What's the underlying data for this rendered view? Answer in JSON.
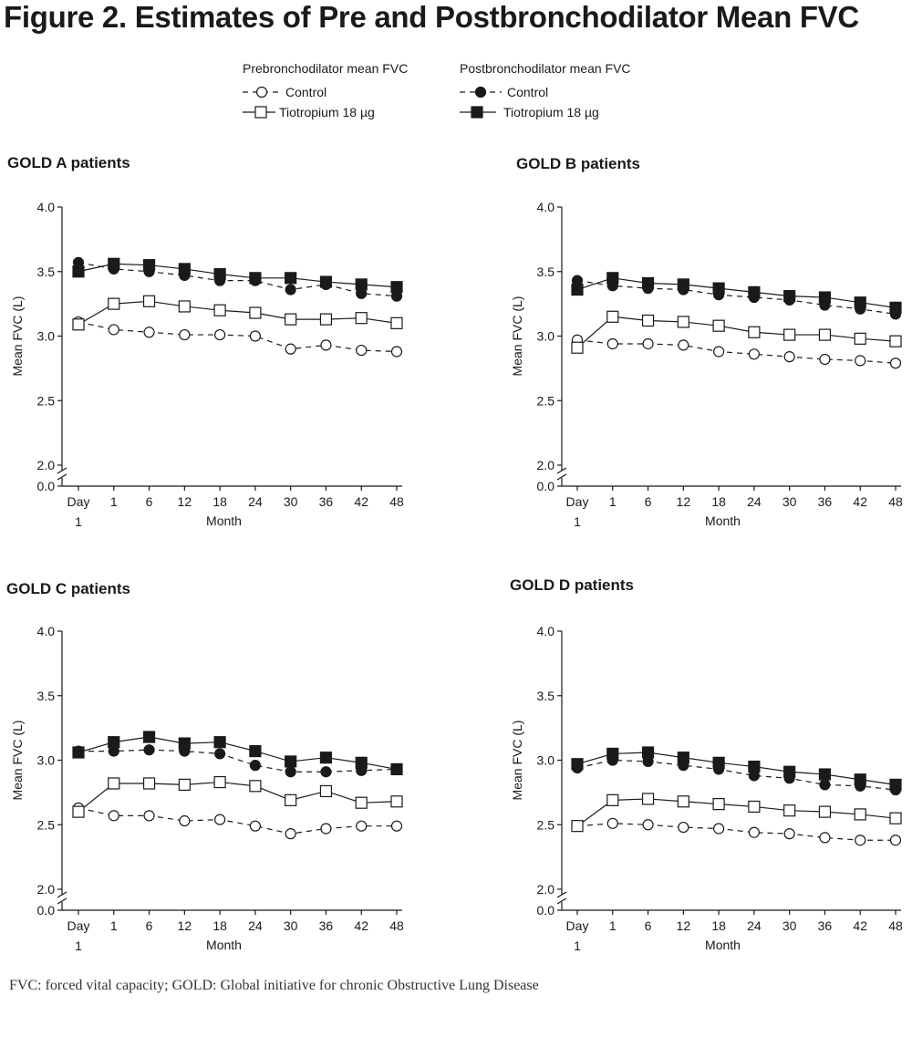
{
  "title": "Figure 2. Estimates of Pre and Postbronchodilator Mean FVC",
  "legend": {
    "pre_heading": "Prebronchodilator mean FVC",
    "post_heading": "Postbronchodilator mean FVC",
    "pre_control": "Control",
    "pre_tiotropium": "Tiotropium 18 µg",
    "post_control": "Control",
    "post_tiotropium": "Tiotropium 18 µg"
  },
  "footnote": "FVC: forced vital capacity; GOLD: Global initiative for chronic Obstructive Lung Disease",
  "chart_data": [
    {
      "type": "line",
      "title": "GOLD A patients",
      "xlabel": "Month",
      "ylabel": "Mean FVC (L)",
      "categories": [
        "Day 1",
        "1",
        "6",
        "12",
        "18",
        "24",
        "30",
        "36",
        "42",
        "48"
      ],
      "yticks": [
        "0.0",
        "2.0",
        "2.5",
        "3.0",
        "3.5",
        "4.0"
      ],
      "ylim": [
        2.0,
        4.0
      ],
      "axis_break": true,
      "series": [
        {
          "name": "Prebronchodilator mean FVC - Control",
          "marker": "open-circle",
          "dash": true,
          "values": [
            3.11,
            3.05,
            3.03,
            3.01,
            3.01,
            3.0,
            2.9,
            2.93,
            2.89,
            2.88
          ]
        },
        {
          "name": "Prebronchodilator mean FVC - Tiotropium 18 µg",
          "marker": "open-square",
          "dash": false,
          "values": [
            3.09,
            3.25,
            3.27,
            3.23,
            3.2,
            3.18,
            3.13,
            3.13,
            3.14,
            3.1
          ]
        },
        {
          "name": "Postbronchodilator mean FVC - Control",
          "marker": "filled-circle",
          "dash": true,
          "values": [
            3.57,
            3.52,
            3.5,
            3.47,
            3.43,
            3.43,
            3.36,
            3.4,
            3.33,
            3.31
          ]
        },
        {
          "name": "Postbronchodilator mean FVC - Tiotropium 18 µg",
          "marker": "filled-square",
          "dash": false,
          "values": [
            3.5,
            3.56,
            3.55,
            3.52,
            3.48,
            3.45,
            3.45,
            3.42,
            3.4,
            3.38
          ]
        }
      ]
    },
    {
      "type": "line",
      "title": "GOLD B patients",
      "xlabel": "Month",
      "ylabel": "Mean FVC (L)",
      "categories": [
        "Day 1",
        "1",
        "6",
        "12",
        "18",
        "24",
        "30",
        "36",
        "42",
        "48"
      ],
      "yticks": [
        "0.0",
        "2.0",
        "2.5",
        "3.0",
        "3.5",
        "4.0"
      ],
      "ylim": [
        2.0,
        4.0
      ],
      "axis_break": true,
      "series": [
        {
          "name": "Prebronchodilator mean FVC - Control",
          "marker": "open-circle",
          "dash": true,
          "values": [
            2.97,
            2.94,
            2.94,
            2.93,
            2.88,
            2.86,
            2.84,
            2.82,
            2.81,
            2.79
          ]
        },
        {
          "name": "Prebronchodilator mean FVC - Tiotropium 18 µg",
          "marker": "open-square",
          "dash": false,
          "values": [
            2.91,
            3.15,
            3.12,
            3.11,
            3.08,
            3.03,
            3.01,
            3.01,
            2.98,
            2.96
          ]
        },
        {
          "name": "Postbronchodilator mean FVC - Control",
          "marker": "filled-circle",
          "dash": true,
          "values": [
            3.43,
            3.39,
            3.37,
            3.36,
            3.32,
            3.3,
            3.28,
            3.24,
            3.21,
            3.17
          ]
        },
        {
          "name": "Postbronchodilator mean FVC - Tiotropium 18 µg",
          "marker": "filled-square",
          "dash": false,
          "values": [
            3.36,
            3.45,
            3.41,
            3.4,
            3.37,
            3.34,
            3.31,
            3.3,
            3.26,
            3.22
          ]
        }
      ]
    },
    {
      "type": "line",
      "title": "GOLD C patients",
      "xlabel": "Month",
      "ylabel": "Mean FVC (L)",
      "categories": [
        "Day 1",
        "1",
        "6",
        "12",
        "18",
        "24",
        "30",
        "36",
        "42",
        "48"
      ],
      "yticks": [
        "0.0",
        "2.0",
        "2.5",
        "3.0",
        "3.5",
        "4.0"
      ],
      "ylim": [
        2.0,
        4.0
      ],
      "axis_break": true,
      "series": [
        {
          "name": "Prebronchodilator mean FVC - Control",
          "marker": "open-circle",
          "dash": true,
          "values": [
            2.63,
            2.57,
            2.57,
            2.53,
            2.54,
            2.49,
            2.43,
            2.47,
            2.49,
            2.49
          ]
        },
        {
          "name": "Prebronchodilator mean FVC - Tiotropium 18 µg",
          "marker": "open-square",
          "dash": false,
          "values": [
            2.6,
            2.82,
            2.82,
            2.81,
            2.83,
            2.8,
            2.69,
            2.76,
            2.67,
            2.68
          ]
        },
        {
          "name": "Postbronchodilator mean FVC - Control",
          "marker": "filled-circle",
          "dash": true,
          "values": [
            3.07,
            3.07,
            3.08,
            3.07,
            3.05,
            2.96,
            2.91,
            2.91,
            2.92,
            2.93
          ]
        },
        {
          "name": "Postbronchodilator mean FVC - Tiotropium 18 µg",
          "marker": "filled-square",
          "dash": false,
          "values": [
            3.06,
            3.14,
            3.18,
            3.13,
            3.14,
            3.07,
            2.99,
            3.02,
            2.98,
            2.93
          ]
        }
      ]
    },
    {
      "type": "line",
      "title": "GOLD D patients",
      "xlabel": "Month",
      "ylabel": "Mean FVC (L)",
      "categories": [
        "Day 1",
        "1",
        "6",
        "12",
        "18",
        "24",
        "30",
        "36",
        "42",
        "48"
      ],
      "yticks": [
        "0.0",
        "2.0",
        "2.5",
        "3.0",
        "3.5",
        "4.0"
      ],
      "ylim": [
        2.0,
        4.0
      ],
      "axis_break": true,
      "series": [
        {
          "name": "Prebronchodilator mean FVC - Control",
          "marker": "open-circle",
          "dash": true,
          "values": [
            2.49,
            2.51,
            2.5,
            2.48,
            2.47,
            2.44,
            2.43,
            2.4,
            2.38,
            2.38
          ]
        },
        {
          "name": "Prebronchodilator mean FVC - Tiotropium 18 µg",
          "marker": "open-square",
          "dash": false,
          "values": [
            2.49,
            2.69,
            2.7,
            2.68,
            2.66,
            2.64,
            2.61,
            2.6,
            2.58,
            2.55
          ]
        },
        {
          "name": "Postbronchodilator mean FVC - Control",
          "marker": "filled-circle",
          "dash": true,
          "values": [
            2.94,
            3.0,
            2.99,
            2.96,
            2.93,
            2.88,
            2.86,
            2.81,
            2.8,
            2.77
          ]
        },
        {
          "name": "Postbronchodilator mean FVC - Tiotropium 18 µg",
          "marker": "filled-square",
          "dash": false,
          "values": [
            2.97,
            3.05,
            3.06,
            3.02,
            2.98,
            2.95,
            2.91,
            2.89,
            2.85,
            2.81
          ]
        }
      ]
    }
  ]
}
